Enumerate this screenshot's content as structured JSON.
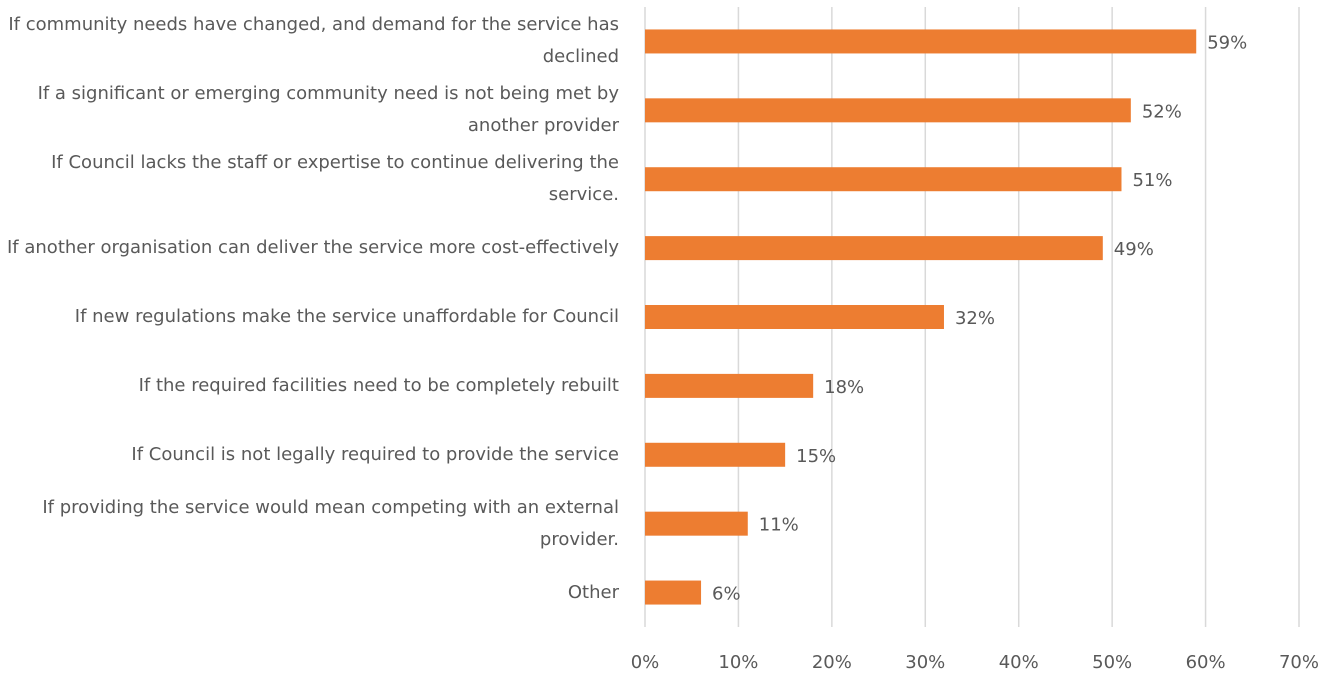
{
  "chart_data": {
    "type": "bar",
    "orientation": "horizontal",
    "categories": [
      "If community needs have changed, and demand for the service has declined",
      "If a significant or emerging community need is not being met by another provider",
      "If Council lacks the staff or expertise to continue delivering the service.",
      "If another organisation can deliver the service more cost-effectively",
      "If new regulations make the service unaffordable for Council",
      "If the required facilities need to be completely rebuilt",
      "If Council is not legally required to provide the service",
      "If providing the service would mean competing with an external provider.",
      "Other"
    ],
    "values": [
      59,
      52,
      51,
      49,
      32,
      18,
      15,
      11,
      6
    ],
    "value_labels": [
      "59%",
      "52%",
      "51%",
      "49%",
      "32%",
      "18%",
      "15%",
      "11%",
      "6%"
    ],
    "color": "#ed7d31",
    "xlim": [
      0,
      70
    ],
    "xticks": [
      {
        "value": 0,
        "label": "0%"
      },
      {
        "value": 10,
        "label": "10%"
      },
      {
        "value": 20,
        "label": "20%"
      },
      {
        "value": 30,
        "label": "30%"
      },
      {
        "value": 40,
        "label": "40%"
      },
      {
        "value": 50,
        "label": "50%"
      },
      {
        "value": 60,
        "label": "60%"
      },
      {
        "value": 70,
        "label": "70%"
      }
    ],
    "grid": true
  }
}
